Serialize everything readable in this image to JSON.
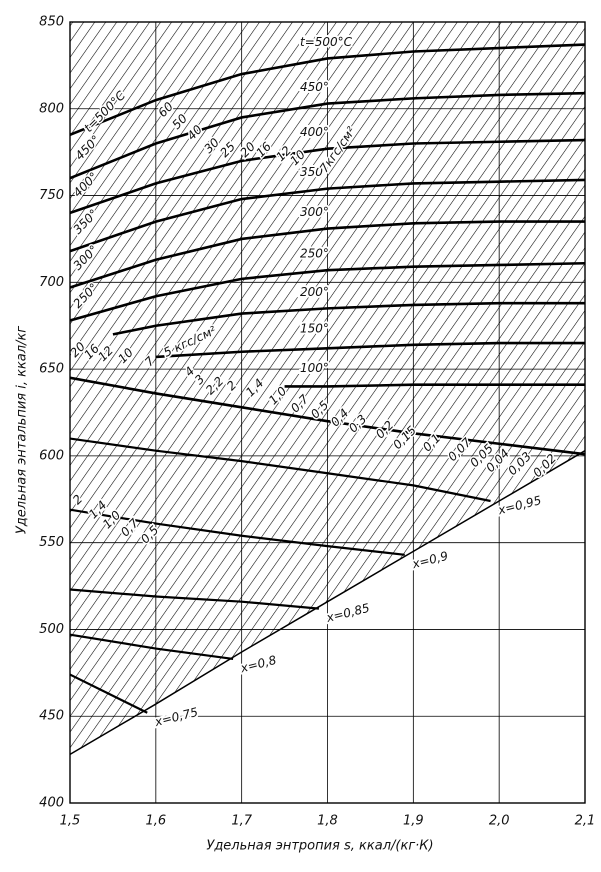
{
  "chart_data": {
    "type": "line",
    "xlabel": "Удельная  энтропия s, ккал/(кг·К)",
    "ylabel": "Удельная энтальпия i, ккал/кг",
    "xlim": [
      1.5,
      2.1
    ],
    "ylim": [
      400,
      850
    ],
    "xticks": [
      {
        "value": 1.5,
        "label": "1,5"
      },
      {
        "value": 1.6,
        "label": "1,6"
      },
      {
        "value": 1.7,
        "label": "1,7"
      },
      {
        "value": 1.8,
        "label": "1,8"
      },
      {
        "value": 1.9,
        "label": "1,9"
      },
      {
        "value": 2.0,
        "label": "2,0"
      },
      {
        "value": 2.1,
        "label": "2,1"
      }
    ],
    "yticks": [
      400,
      450,
      500,
      550,
      600,
      650,
      700,
      750,
      800,
      850
    ],
    "grid": true,
    "series": [
      {
        "name": "t=500°C",
        "color": "#000",
        "x": [
          1.5,
          1.6,
          1.7,
          1.8,
          1.9,
          2.0,
          2.1
        ],
        "values": [
          785,
          805,
          820,
          829,
          833,
          835,
          837
        ]
      },
      {
        "name": "450°",
        "color": "#000",
        "x": [
          1.5,
          1.6,
          1.7,
          1.8,
          1.9,
          2.0,
          2.1
        ],
        "values": [
          760,
          780,
          795,
          803,
          806,
          808,
          809
        ]
      },
      {
        "name": "400°",
        "color": "#000",
        "x": [
          1.5,
          1.6,
          1.7,
          1.8,
          1.9,
          2.0,
          2.1
        ],
        "values": [
          740,
          757,
          770,
          777,
          780,
          781,
          782
        ]
      },
      {
        "name": "350°",
        "color": "#000",
        "x": [
          1.5,
          1.6,
          1.7,
          1.8,
          1.9,
          2.0,
          2.1
        ],
        "values": [
          718,
          735,
          748,
          754,
          757,
          758,
          759
        ]
      },
      {
        "name": "300°",
        "color": "#000",
        "x": [
          1.5,
          1.6,
          1.7,
          1.8,
          1.9,
          2.0,
          2.1
        ],
        "values": [
          697,
          713,
          725,
          731,
          734,
          735,
          735
        ]
      },
      {
        "name": "250°",
        "color": "#000",
        "x": [
          1.5,
          1.6,
          1.7,
          1.8,
          1.9,
          2.0,
          2.1
        ],
        "values": [
          678,
          692,
          702,
          707,
          709,
          710,
          711
        ]
      },
      {
        "name": "200°",
        "color": "#000",
        "x": [
          1.55,
          1.6,
          1.7,
          1.8,
          1.9,
          2.0,
          2.1
        ],
        "values": [
          670,
          675,
          682,
          685,
          687,
          688,
          688
        ]
      },
      {
        "name": "150°",
        "color": "#000",
        "x": [
          1.6,
          1.7,
          1.8,
          1.9,
          2.0,
          2.1
        ],
        "values": [
          657,
          660,
          662,
          664,
          665,
          665
        ]
      },
      {
        "name": "100°",
        "color": "#000",
        "x": [
          1.75,
          1.8,
          1.9,
          2.0,
          2.1
        ],
        "values": [
          640,
          640,
          641,
          641,
          641
        ]
      },
      {
        "color": "#000",
        "x": [
          1.5,
          1.6,
          1.7,
          1.8,
          1.9,
          2.0,
          2.1
        ],
        "values": [
          645,
          636,
          628,
          620,
          613,
          607,
          601
        ]
      },
      {
        "name": "x=0,95",
        "color": "#000",
        "x": [
          1.5,
          1.6,
          1.7,
          1.8,
          1.9,
          1.99
        ],
        "values": [
          610,
          603,
          597,
          590,
          583,
          574
        ]
      },
      {
        "name": "x=0,9",
        "color": "#000",
        "x": [
          1.5,
          1.6,
          1.7,
          1.8,
          1.89
        ],
        "values": [
          569,
          561,
          554,
          548,
          543
        ]
      },
      {
        "name": "x=0,85",
        "color": "#000",
        "x": [
          1.5,
          1.6,
          1.7,
          1.79
        ],
        "values": [
          523,
          519,
          516,
          512
        ]
      },
      {
        "name": "x=0,8",
        "color": "#000",
        "x": [
          1.5,
          1.6,
          1.69
        ],
        "values": [
          497,
          489,
          483
        ]
      },
      {
        "name": "x=0,75",
        "color": "#000",
        "x": [
          1.5,
          1.59
        ],
        "values": [
          474,
          452
        ]
      }
    ],
    "boundary": {
      "x": [
        1.5,
        1.6,
        1.7,
        1.8,
        1.9,
        2.0,
        2.1
      ],
      "values": [
        428,
        457,
        487,
        516,
        545,
        574,
        603
      ]
    },
    "annotations": [
      "t=500°C",
      "450°",
      "400°",
      "350°",
      "300°",
      "250°",
      "60",
      "50",
      "40",
      "30",
      "25",
      "20",
      "16",
      "12",
      "10",
      "7кгс/см²",
      "20",
      "16",
      "12",
      "10",
      "7",
      "5 кгс/см²",
      "4",
      "3",
      "2,2",
      "2",
      "1,4",
      "1,0",
      "0,7",
      "0,5",
      "0,4",
      "0,3",
      "0,2",
      "0,15",
      "0,1",
      "0,07",
      "0,05",
      "0,04",
      "0,03",
      "0,02",
      "2",
      "1,4",
      "1,0",
      "0,7",
      "0,5"
    ]
  }
}
